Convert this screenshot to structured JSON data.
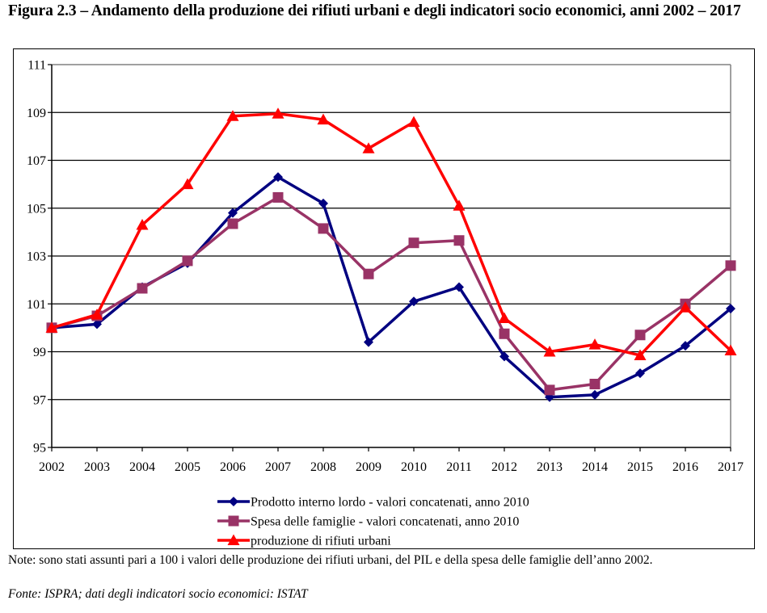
{
  "title": "Figura 2.3 – Andamento della produzione dei rifiuti urbani e degli indicatori socio economici, anni 2002 – 2017",
  "note": "Note: sono stati assunti pari a 100 i valori delle produzione dei rifiuti urbani, del PIL e della spesa delle famiglie dell’anno 2002.",
  "source": "Fonte: ISPRA; dati degli indicatori socio economici: ISTAT",
  "chart_data": {
    "type": "line",
    "title": "Figura 2.3 – Andamento della produzione dei rifiuti urbani e degli indicatori socio economici, anni 2002 – 2017",
    "xlabel": "",
    "ylabel": "",
    "x": [
      "2002",
      "2003",
      "2004",
      "2005",
      "2006",
      "2007",
      "2008",
      "2009",
      "2010",
      "2011",
      "2012",
      "2013",
      "2014",
      "2015",
      "2016",
      "2017"
    ],
    "ylim": [
      95,
      111
    ],
    "yticks": [
      95,
      97,
      99,
      101,
      103,
      105,
      107,
      109,
      111
    ],
    "grid": true,
    "legend_position": "bottom",
    "series": [
      {
        "name": "Prodotto interno lordo - valori concatenati, anno 2010",
        "color": "#000080",
        "marker": "diamond",
        "values": [
          100.0,
          100.15,
          101.7,
          102.7,
          104.8,
          106.3,
          105.2,
          99.4,
          101.1,
          101.7,
          98.8,
          97.1,
          97.2,
          98.1,
          99.25,
          100.8
        ]
      },
      {
        "name": "Spesa delle famiglie - valori concatenati, anno 2010",
        "color": "#993366",
        "marker": "square",
        "values": [
          100.0,
          100.5,
          101.65,
          102.8,
          104.35,
          105.45,
          104.15,
          102.25,
          103.55,
          103.65,
          99.75,
          97.4,
          97.65,
          99.7,
          101.0,
          102.6
        ]
      },
      {
        "name": "produzione di rifiuti urbani",
        "color": "#ff0000",
        "marker": "triangle",
        "values": [
          100.0,
          100.55,
          104.3,
          106.0,
          108.85,
          108.95,
          108.7,
          107.5,
          108.6,
          105.1,
          100.4,
          99.0,
          99.3,
          98.85,
          100.85,
          99.05
        ]
      }
    ]
  }
}
